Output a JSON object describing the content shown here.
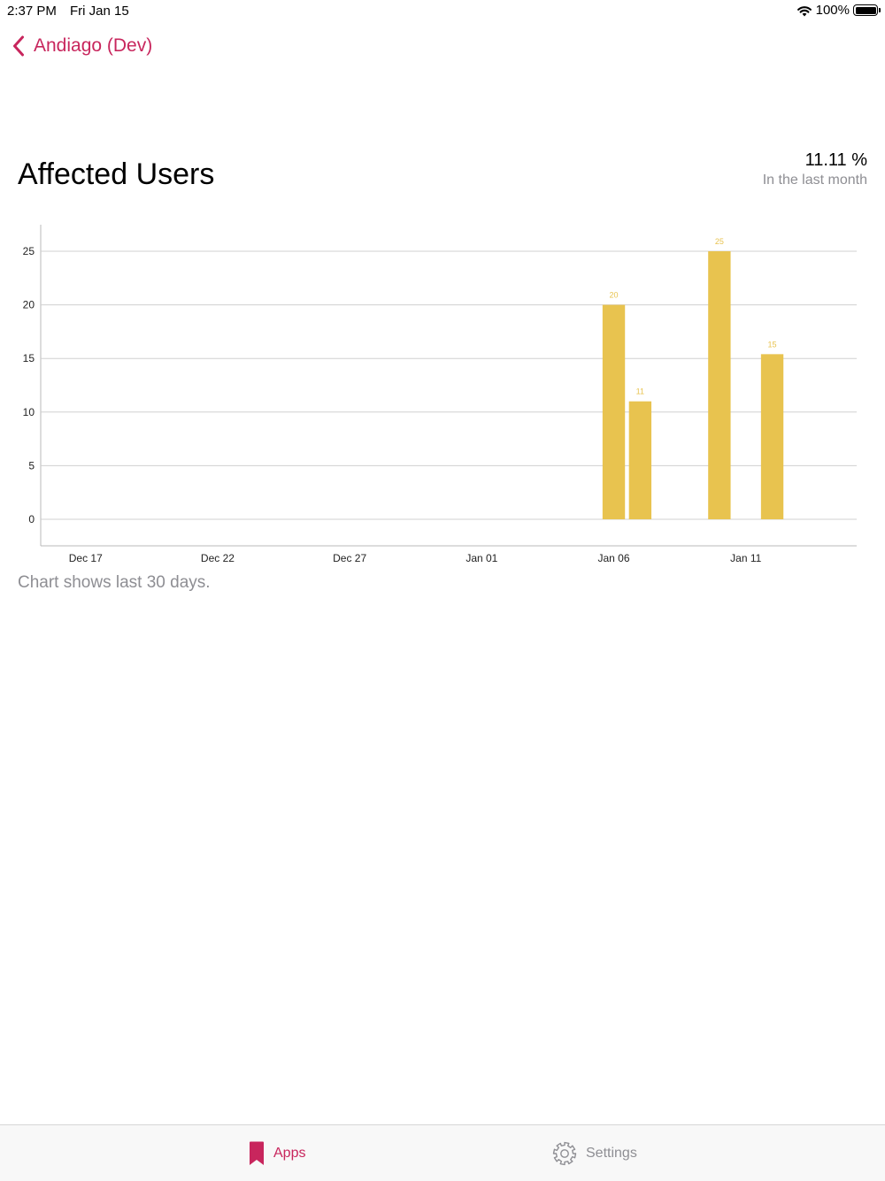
{
  "status_bar": {
    "time": "2:37 PM",
    "date": "Fri Jan 15",
    "battery": "100%"
  },
  "nav": {
    "back_label": "Andiago (Dev)"
  },
  "header": {
    "title": "Affected Users",
    "stat_value": "11.11 %",
    "stat_caption": "In the last month"
  },
  "chart_caption": "Chart shows last 30 days.",
  "tabs": [
    {
      "label": "Apps",
      "icon": "bookmark-icon",
      "selected": true
    },
    {
      "label": "Settings",
      "icon": "gear-icon",
      "selected": false
    }
  ],
  "colors": {
    "accent": "#c8265d",
    "bar": "#e8c34f",
    "bar_label": "#e8c34f",
    "grid": "#d0d0d0",
    "secondary_text": "#8e8e93"
  },
  "chart_data": {
    "type": "bar",
    "x_ticks": [
      "Dec 17",
      "Dec 22",
      "Dec 27",
      "Jan 01",
      "Jan 06",
      "Jan 11"
    ],
    "y_ticks": [
      0,
      5,
      10,
      15,
      20,
      25
    ],
    "ylim": [
      0,
      27.5
    ],
    "x_range": [
      "Dec 16",
      "Jan 15"
    ],
    "grid": true,
    "bars": [
      {
        "date": "Jan 06",
        "value": 20,
        "label": "20"
      },
      {
        "date": "Jan 07",
        "value": 11,
        "label": "11"
      },
      {
        "date": "Jan 10",
        "value": 25,
        "label": "25"
      },
      {
        "date": "Jan 12",
        "value": 15.4,
        "label": "15"
      }
    ]
  }
}
